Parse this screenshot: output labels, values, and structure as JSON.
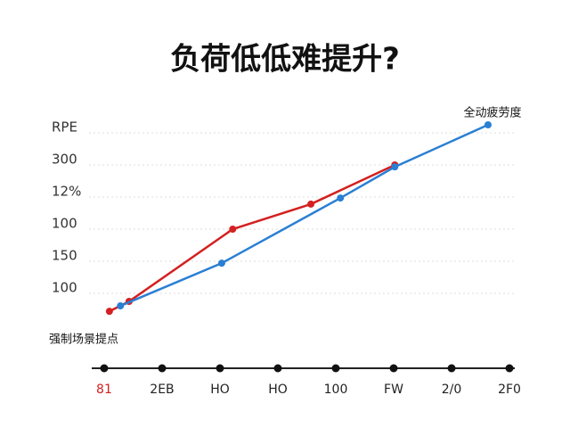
{
  "chart_data": {
    "type": "line",
    "title": "负荷低低难提升?",
    "annotations": [
      "全动疲劳度",
      "强制场景提点"
    ],
    "categories": [
      "81",
      "2EB",
      "HO",
      "HO",
      "100",
      "FW",
      "2/0",
      "2F0"
    ],
    "y_labels": [
      "100",
      "150",
      "100",
      "12%",
      "300",
      "RPE"
    ],
    "xlim": [
      -0.215,
      7.092
    ],
    "ylim": [
      -1,
      5.5
    ],
    "grid": true,
    "series": [
      {
        "name": "red",
        "color": "#d42020",
        "x": [
          0.09,
          0.43,
          2.22,
          3.57,
          5.02
        ],
        "values": [
          -0.56,
          -0.25,
          2.0,
          2.78,
          4.0
        ]
      },
      {
        "name": "blue",
        "color": "#2a7fd4",
        "x": [
          0.28,
          2.03,
          4.08,
          5.02,
          6.63
        ],
        "values": [
          -0.39,
          0.94,
          2.97,
          3.94,
          5.25
        ]
      }
    ]
  }
}
